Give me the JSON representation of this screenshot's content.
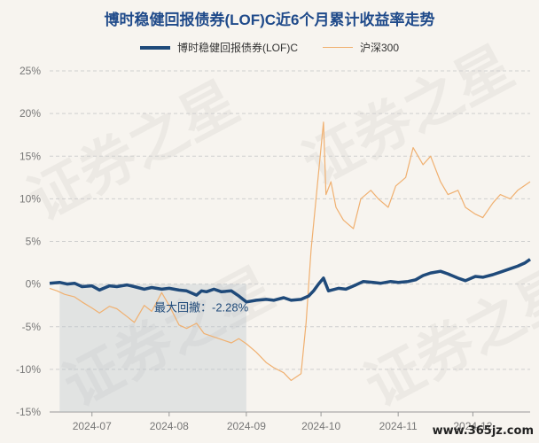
{
  "chart_data": {
    "type": "line",
    "title": "博时稳健回报债券(LOF)C近6个月累计收益率走势",
    "ylim": [
      -15,
      25
    ],
    "yticks": [
      "25%",
      "20%",
      "15%",
      "10%",
      "5%",
      "0%",
      "-5%",
      "-10%",
      "-15%"
    ],
    "xticks": [
      "2024-07",
      "2024-08",
      "2024-09",
      "2024-10",
      "2024-11",
      "2024-12"
    ],
    "grid": true,
    "legend_position": "top",
    "max_drawdown_label": "最大回撤：-2.28%",
    "max_drawdown_range": [
      "2024-06-18",
      "2024-09-01"
    ],
    "series": [
      {
        "name": "博时稳健回报债券(LOF)C",
        "color": "#1f4a7a",
        "points": [
          [
            "2024-06-14",
            0.1
          ],
          [
            "2024-06-18",
            0.2
          ],
          [
            "2024-06-21",
            0.0
          ],
          [
            "2024-06-24",
            0.1
          ],
          [
            "2024-06-27",
            -0.3
          ],
          [
            "2024-07-01",
            -0.2
          ],
          [
            "2024-07-04",
            -0.7
          ],
          [
            "2024-07-08",
            -0.2
          ],
          [
            "2024-07-11",
            -0.3
          ],
          [
            "2024-07-15",
            -0.1
          ],
          [
            "2024-07-18",
            -0.3
          ],
          [
            "2024-07-22",
            -0.6
          ],
          [
            "2024-07-25",
            -0.4
          ],
          [
            "2024-07-29",
            -0.6
          ],
          [
            "2024-08-01",
            -0.5
          ],
          [
            "2024-08-05",
            -0.7
          ],
          [
            "2024-08-08",
            -0.8
          ],
          [
            "2024-08-12",
            -1.3
          ],
          [
            "2024-08-14",
            -0.8
          ],
          [
            "2024-08-16",
            -0.9
          ],
          [
            "2024-08-19",
            -0.6
          ],
          [
            "2024-08-22",
            -0.9
          ],
          [
            "2024-08-26",
            -0.8
          ],
          [
            "2024-08-29",
            -1.4
          ],
          [
            "2024-09-01",
            -2.1
          ],
          [
            "2024-09-05",
            -1.9
          ],
          [
            "2024-09-09",
            -1.8
          ],
          [
            "2024-09-12",
            -1.9
          ],
          [
            "2024-09-16",
            -1.6
          ],
          [
            "2024-09-19",
            -1.9
          ],
          [
            "2024-09-23",
            -1.8
          ],
          [
            "2024-09-26",
            -1.4
          ],
          [
            "2024-09-28",
            -0.8
          ],
          [
            "2024-09-30",
            0.0
          ],
          [
            "2024-10-02",
            0.7
          ],
          [
            "2024-10-04",
            -0.8
          ],
          [
            "2024-10-08",
            -0.5
          ],
          [
            "2024-10-11",
            -0.6
          ],
          [
            "2024-10-15",
            -0.1
          ],
          [
            "2024-10-18",
            0.3
          ],
          [
            "2024-10-22",
            0.2
          ],
          [
            "2024-10-25",
            0.1
          ],
          [
            "2024-10-29",
            0.3
          ],
          [
            "2024-11-01",
            0.2
          ],
          [
            "2024-11-05",
            0.3
          ],
          [
            "2024-11-08",
            0.5
          ],
          [
            "2024-11-11",
            1.0
          ],
          [
            "2024-11-14",
            1.3
          ],
          [
            "2024-11-18",
            1.5
          ],
          [
            "2024-11-21",
            1.2
          ],
          [
            "2024-11-25",
            0.7
          ],
          [
            "2024-11-28",
            0.4
          ],
          [
            "2024-12-02",
            0.9
          ],
          [
            "2024-12-05",
            0.8
          ],
          [
            "2024-12-09",
            1.1
          ],
          [
            "2024-12-12",
            1.4
          ],
          [
            "2024-12-16",
            1.8
          ],
          [
            "2024-12-19",
            2.1
          ],
          [
            "2024-12-22",
            2.5
          ],
          [
            "2024-12-24",
            2.9
          ]
        ]
      },
      {
        "name": "沪深300",
        "color": "#f0b070",
        "points": [
          [
            "2024-06-14",
            -0.5
          ],
          [
            "2024-06-17",
            -0.8
          ],
          [
            "2024-06-20",
            -1.2
          ],
          [
            "2024-06-24",
            -1.5
          ],
          [
            "2024-06-27",
            -2.1
          ],
          [
            "2024-07-01",
            -2.8
          ],
          [
            "2024-07-04",
            -3.4
          ],
          [
            "2024-07-08",
            -2.6
          ],
          [
            "2024-07-11",
            -2.9
          ],
          [
            "2024-07-15",
            -3.8
          ],
          [
            "2024-07-18",
            -4.5
          ],
          [
            "2024-07-22",
            -2.5
          ],
          [
            "2024-07-25",
            -3.2
          ],
          [
            "2024-07-29",
            -1.0
          ],
          [
            "2024-08-01",
            -2.5
          ],
          [
            "2024-08-05",
            -4.8
          ],
          [
            "2024-08-08",
            -5.2
          ],
          [
            "2024-08-12",
            -4.6
          ],
          [
            "2024-08-15",
            -5.8
          ],
          [
            "2024-08-19",
            -6.2
          ],
          [
            "2024-08-22",
            -6.5
          ],
          [
            "2024-08-26",
            -6.9
          ],
          [
            "2024-08-29",
            -6.4
          ],
          [
            "2024-09-01",
            -7.0
          ],
          [
            "2024-09-05",
            -8.0
          ],
          [
            "2024-09-09",
            -9.2
          ],
          [
            "2024-09-12",
            -9.8
          ],
          [
            "2024-09-16",
            -10.4
          ],
          [
            "2024-09-19",
            -11.3
          ],
          [
            "2024-09-23",
            -10.5
          ],
          [
            "2024-09-25",
            -4.5
          ],
          [
            "2024-09-27",
            4.0
          ],
          [
            "2024-09-30",
            13.0
          ],
          [
            "2024-10-02",
            19.0
          ],
          [
            "2024-10-03",
            10.5
          ],
          [
            "2024-10-05",
            12.0
          ],
          [
            "2024-10-07",
            9.0
          ],
          [
            "2024-10-10",
            7.5
          ],
          [
            "2024-10-14",
            6.5
          ],
          [
            "2024-10-17",
            10.0
          ],
          [
            "2024-10-21",
            11.0
          ],
          [
            "2024-10-24",
            10.0
          ],
          [
            "2024-10-28",
            9.0
          ],
          [
            "2024-10-31",
            11.5
          ],
          [
            "2024-11-04",
            12.5
          ],
          [
            "2024-11-07",
            16.0
          ],
          [
            "2024-11-11",
            14.0
          ],
          [
            "2024-11-14",
            15.0
          ],
          [
            "2024-11-18",
            12.0
          ],
          [
            "2024-11-21",
            10.5
          ],
          [
            "2024-11-25",
            11.0
          ],
          [
            "2024-11-28",
            9.0
          ],
          [
            "2024-12-02",
            8.2
          ],
          [
            "2024-12-05",
            7.8
          ],
          [
            "2024-12-09",
            9.5
          ],
          [
            "2024-12-12",
            10.5
          ],
          [
            "2024-12-16",
            10.0
          ],
          [
            "2024-12-19",
            11.0
          ],
          [
            "2024-12-24",
            12.0
          ]
        ]
      }
    ]
  },
  "watermark": "证券之星",
  "site": "www.365jz.com"
}
